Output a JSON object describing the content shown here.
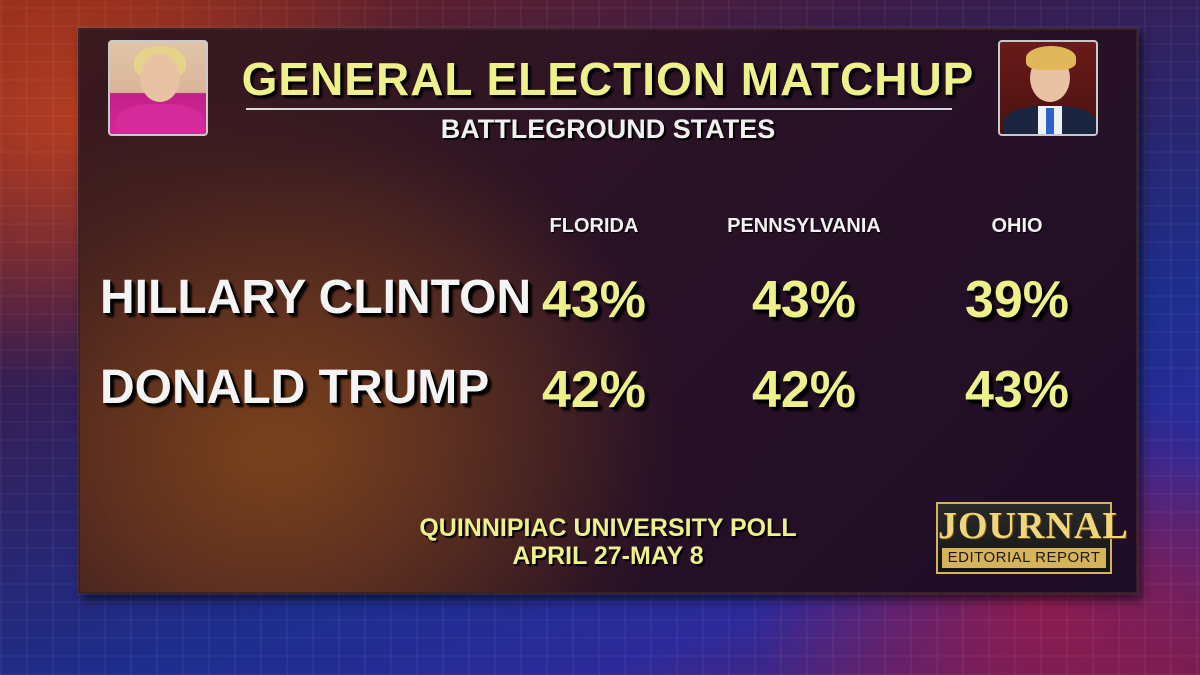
{
  "header": {
    "title": "GENERAL ELECTION MATCHUP",
    "subtitle": "BATTLEGROUND STATES"
  },
  "photos": {
    "left_icon": "candidate-portrait-icon",
    "right_icon": "candidate-portrait-icon"
  },
  "table": {
    "columns": [
      "FLORIDA",
      "PENNSYLVANIA",
      "OHIO"
    ],
    "rows": [
      {
        "label": "HILLARY CLINTON",
        "values": [
          "43%",
          "43%",
          "39%"
        ]
      },
      {
        "label": "DONALD TRUMP",
        "values": [
          "42%",
          "42%",
          "43%"
        ]
      }
    ]
  },
  "source": {
    "line1": "QUINNIPIAC UNIVERSITY POLL",
    "line2": "APRIL 27-MAY 8"
  },
  "logo": {
    "top": "JOURNAL",
    "bottom": "EDITORIAL REPORT"
  },
  "colors": {
    "accent_yellow": "#eef08a",
    "text_white": "#f4f4f4",
    "logo_gold": "#d6b25a"
  }
}
